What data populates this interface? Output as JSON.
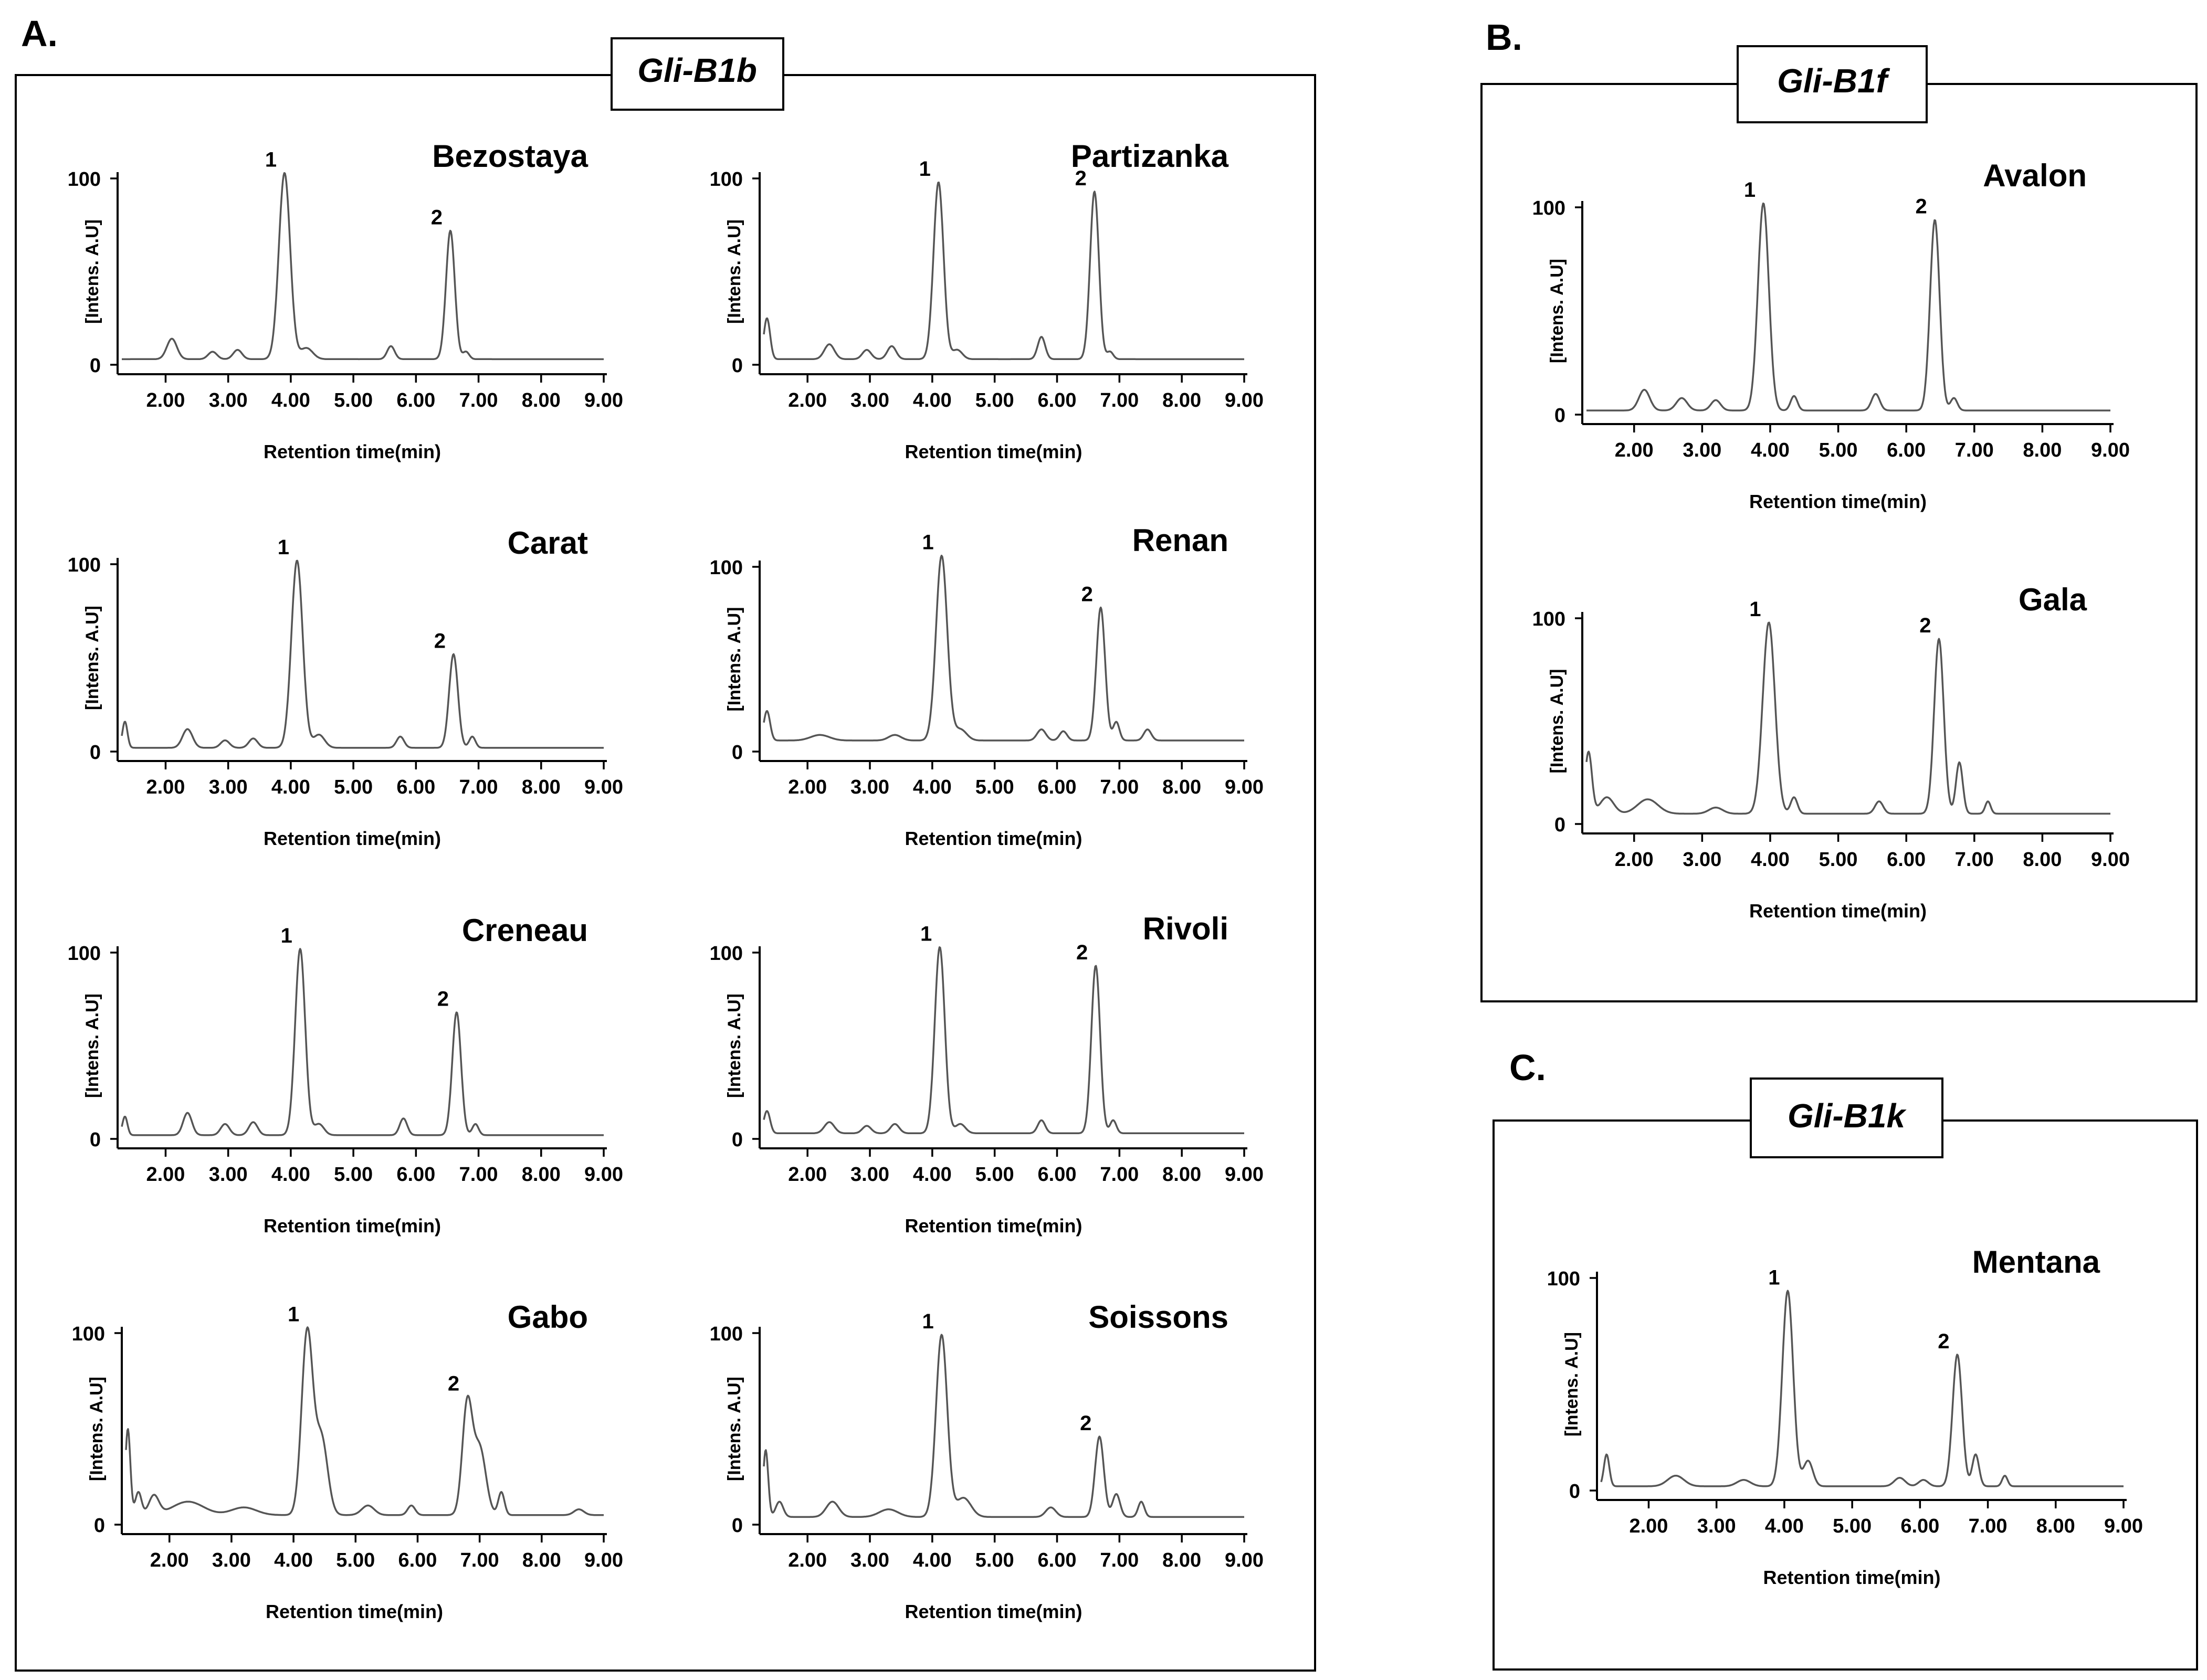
{
  "figure": {
    "panels": [
      {
        "letter": "A.",
        "gene": "Gli-B1b"
      },
      {
        "letter": "B.",
        "gene": "Gli-B1f"
      },
      {
        "letter": "C.",
        "gene": "Gli-B1k"
      }
    ]
  },
  "chart_data": [
    {
      "type": "line",
      "panel": "A",
      "title": "Bezostaya",
      "xlabel": "Retention time(min)",
      "ylabel": "[Intens. A.U]",
      "xlim": [
        1.3,
        9.0
      ],
      "ylim": [
        0,
        100
      ],
      "xticks": [
        "2.00",
        "3.00",
        "4.00",
        "5.00",
        "6.00",
        "7.00",
        "8.00",
        "9.00"
      ],
      "yticks": [
        "0",
        "100"
      ],
      "baseline": 3.0,
      "peaks": [
        {
          "label": "1",
          "x": 3.9,
          "y": 100,
          "w": 0.09
        },
        {
          "label": "2",
          "x": 6.55,
          "y": 69,
          "w": 0.07
        }
      ],
      "minor_peaks": [
        [
          2.1,
          11,
          0.08
        ],
        [
          2.75,
          4,
          0.07
        ],
        [
          3.15,
          5,
          0.07
        ],
        [
          4.25,
          6,
          0.1
        ],
        [
          5.6,
          7,
          0.06
        ],
        [
          6.8,
          4,
          0.05
        ]
      ]
    },
    {
      "type": "line",
      "panel": "A",
      "title": "Partizanka",
      "xlabel": "Retention time(min)",
      "ylabel": "[Intens. A.U]",
      "xlim": [
        1.3,
        9.0
      ],
      "ylim": [
        0,
        100
      ],
      "xticks": [
        "2.00",
        "3.00",
        "4.00",
        "5.00",
        "6.00",
        "7.00",
        "8.00",
        "9.00"
      ],
      "yticks": [
        "0",
        "100"
      ],
      "baseline": 3.0,
      "peaks": [
        {
          "label": "1",
          "x": 4.1,
          "y": 95,
          "w": 0.08
        },
        {
          "label": "2",
          "x": 6.6,
          "y": 90,
          "w": 0.07
        }
      ],
      "minor_peaks": [
        [
          1.35,
          22,
          0.05
        ],
        [
          2.35,
          8,
          0.08
        ],
        [
          2.95,
          5,
          0.07
        ],
        [
          3.35,
          7,
          0.07
        ],
        [
          4.4,
          5,
          0.08
        ],
        [
          5.75,
          12,
          0.06
        ],
        [
          6.85,
          4,
          0.05
        ]
      ]
    },
    {
      "type": "line",
      "panel": "A",
      "title": "Carat",
      "xlabel": "Retention time(min)",
      "ylabel": "[Intens. A.U]",
      "xlim": [
        1.3,
        9.0
      ],
      "ylim": [
        0,
        100
      ],
      "xticks": [
        "2.00",
        "3.00",
        "4.00",
        "5.00",
        "6.00",
        "7.00",
        "8.00",
        "9.00"
      ],
      "yticks": [
        "0",
        "100"
      ],
      "baseline": 2.0,
      "peaks": [
        {
          "label": "1",
          "x": 4.1,
          "y": 100,
          "w": 0.09
        },
        {
          "label": "2",
          "x": 6.6,
          "y": 50,
          "w": 0.07
        }
      ],
      "minor_peaks": [
        [
          1.35,
          14,
          0.04
        ],
        [
          2.35,
          10,
          0.08
        ],
        [
          2.95,
          4,
          0.07
        ],
        [
          3.4,
          5,
          0.07
        ],
        [
          4.45,
          7,
          0.09
        ],
        [
          5.75,
          6,
          0.06
        ],
        [
          6.9,
          6,
          0.05
        ]
      ]
    },
    {
      "type": "line",
      "panel": "A",
      "title": "Renan",
      "xlabel": "Retention time(min)",
      "ylabel": "[Intens. A.U]",
      "xlim": [
        1.3,
        9.0
      ],
      "ylim": [
        0,
        100
      ],
      "xticks": [
        "2.00",
        "3.00",
        "4.00",
        "5.00",
        "6.00",
        "7.00",
        "8.00",
        "9.00"
      ],
      "yticks": [
        "0",
        "100"
      ],
      "baseline": 6.0,
      "peaks": [
        {
          "label": "1",
          "x": 4.15,
          "y": 100,
          "w": 0.09
        },
        {
          "label": "2",
          "x": 6.7,
          "y": 72,
          "w": 0.07
        }
      ],
      "minor_peaks": [
        [
          1.35,
          16,
          0.05
        ],
        [
          2.2,
          3,
          0.15
        ],
        [
          3.4,
          3,
          0.1
        ],
        [
          4.45,
          6,
          0.1
        ],
        [
          5.75,
          6,
          0.07
        ],
        [
          6.1,
          5,
          0.06
        ],
        [
          6.95,
          10,
          0.05
        ],
        [
          7.45,
          6,
          0.06
        ]
      ]
    },
    {
      "type": "line",
      "panel": "A",
      "title": "Creneau",
      "xlabel": "Retention time(min)",
      "ylabel": "[Intens. A.U]",
      "xlim": [
        1.3,
        9.0
      ],
      "ylim": [
        0,
        100
      ],
      "xticks": [
        "2.00",
        "3.00",
        "4.00",
        "5.00",
        "6.00",
        "7.00",
        "8.00",
        "9.00"
      ],
      "yticks": [
        "0",
        "100"
      ],
      "baseline": 2.0,
      "peaks": [
        {
          "label": "1",
          "x": 4.15,
          "y": 100,
          "w": 0.08
        },
        {
          "label": "2",
          "x": 6.65,
          "y": 66,
          "w": 0.07
        }
      ],
      "minor_peaks": [
        [
          1.35,
          10,
          0.04
        ],
        [
          2.35,
          12,
          0.07
        ],
        [
          2.95,
          6,
          0.07
        ],
        [
          3.4,
          7,
          0.07
        ],
        [
          4.45,
          6,
          0.08
        ],
        [
          5.8,
          9,
          0.06
        ],
        [
          6.95,
          6,
          0.05
        ]
      ]
    },
    {
      "type": "line",
      "panel": "A",
      "title": "Rivoli",
      "xlabel": "Retention time(min)",
      "ylabel": "[Intens. A.U]",
      "xlim": [
        1.3,
        9.0
      ],
      "ylim": [
        0,
        100
      ],
      "xticks": [
        "2.00",
        "3.00",
        "4.00",
        "5.00",
        "6.00",
        "7.00",
        "8.00",
        "9.00"
      ],
      "yticks": [
        "0",
        "100"
      ],
      "baseline": 3.0,
      "peaks": [
        {
          "label": "1",
          "x": 4.12,
          "y": 100,
          "w": 0.08
        },
        {
          "label": "2",
          "x": 6.62,
          "y": 90,
          "w": 0.07
        }
      ],
      "minor_peaks": [
        [
          1.35,
          12,
          0.05
        ],
        [
          2.35,
          6,
          0.08
        ],
        [
          2.95,
          4,
          0.07
        ],
        [
          3.4,
          5,
          0.07
        ],
        [
          4.45,
          5,
          0.08
        ],
        [
          5.75,
          7,
          0.06
        ],
        [
          6.9,
          7,
          0.05
        ]
      ]
    },
    {
      "type": "line",
      "panel": "A",
      "title": "Gabo",
      "xlabel": "Retention time(min)",
      "ylabel": "[Intens. A.U]",
      "xlim": [
        1.3,
        9.0
      ],
      "ylim": [
        0,
        100
      ],
      "xticks": [
        "2.00",
        "3.00",
        "4.00",
        "5.00",
        "6.00",
        "7.00",
        "8.00",
        "9.00"
      ],
      "yticks": [
        "0",
        "100"
      ],
      "baseline": 5.0,
      "peaks": [
        {
          "label": "1",
          "x": 4.22,
          "y": 95,
          "w": 0.09
        },
        {
          "label": "2",
          "x": 6.8,
          "y": 57,
          "w": 0.08
        }
      ],
      "minor_peaks": [
        [
          1.33,
          45,
          0.04
        ],
        [
          1.5,
          12,
          0.05
        ],
        [
          1.75,
          10,
          0.08
        ],
        [
          2.3,
          7,
          0.25
        ],
        [
          3.2,
          4,
          0.2
        ],
        [
          4.45,
          40,
          0.1
        ],
        [
          5.2,
          5,
          0.1
        ],
        [
          5.9,
          5,
          0.06
        ],
        [
          7.0,
          35,
          0.1
        ],
        [
          7.35,
          12,
          0.05
        ],
        [
          8.6,
          3,
          0.08
        ]
      ]
    },
    {
      "type": "line",
      "panel": "A",
      "title": "Soissons",
      "xlabel": "Retention time(min)",
      "ylabel": "[Intens. A.U]",
      "xlim": [
        1.3,
        9.0
      ],
      "ylim": [
        0,
        100
      ],
      "xticks": [
        "2.00",
        "3.00",
        "4.00",
        "5.00",
        "6.00",
        "7.00",
        "8.00",
        "9.00"
      ],
      "yticks": [
        "0",
        "100"
      ],
      "baseline": 4.0,
      "peaks": [
        {
          "label": "1",
          "x": 4.15,
          "y": 95,
          "w": 0.09
        },
        {
          "label": "2",
          "x": 6.68,
          "y": 42,
          "w": 0.07
        }
      ],
      "minor_peaks": [
        [
          1.33,
          35,
          0.04
        ],
        [
          1.55,
          8,
          0.06
        ],
        [
          2.4,
          8,
          0.1
        ],
        [
          3.3,
          4,
          0.15
        ],
        [
          4.5,
          10,
          0.12
        ],
        [
          5.9,
          5,
          0.08
        ],
        [
          6.95,
          12,
          0.06
        ],
        [
          7.35,
          8,
          0.05
        ]
      ]
    },
    {
      "type": "line",
      "panel": "B",
      "title": "Avalon",
      "xlabel": "Retention time(min)",
      "ylabel": "[Intens. A.U]",
      "xlim": [
        1.3,
        9.0
      ],
      "ylim": [
        0,
        100
      ],
      "xticks": [
        "2.00",
        "3.00",
        "4.00",
        "5.00",
        "6.00",
        "7.00",
        "8.00",
        "9.00"
      ],
      "yticks": [
        "0",
        "100"
      ],
      "baseline": 2.0,
      "peaks": [
        {
          "label": "1",
          "x": 3.9,
          "y": 100,
          "w": 0.08
        },
        {
          "label": "2",
          "x": 6.42,
          "y": 92,
          "w": 0.07
        }
      ],
      "minor_peaks": [
        [
          2.15,
          10,
          0.08
        ],
        [
          2.7,
          6,
          0.08
        ],
        [
          3.2,
          5,
          0.07
        ],
        [
          4.35,
          7,
          0.05
        ],
        [
          5.55,
          8,
          0.06
        ],
        [
          6.7,
          6,
          0.05
        ]
      ]
    },
    {
      "type": "line",
      "panel": "B",
      "title": "Gala",
      "xlabel": "Retention time(min)",
      "ylabel": "[Intens. A.U]",
      "xlim": [
        1.3,
        9.0
      ],
      "ylim": [
        0,
        100
      ],
      "xticks": [
        "2.00",
        "3.00",
        "4.00",
        "5.00",
        "6.00",
        "7.00",
        "8.00",
        "9.00"
      ],
      "yticks": [
        "0",
        "100"
      ],
      "baseline": 5.0,
      "peaks": [
        {
          "label": "1",
          "x": 3.98,
          "y": 93,
          "w": 0.09
        },
        {
          "label": "2",
          "x": 6.48,
          "y": 85,
          "w": 0.07
        }
      ],
      "minor_peaks": [
        [
          1.33,
          30,
          0.05
        ],
        [
          1.6,
          8,
          0.1
        ],
        [
          2.2,
          7,
          0.15
        ],
        [
          3.2,
          3,
          0.1
        ],
        [
          4.35,
          8,
          0.05
        ],
        [
          5.6,
          6,
          0.06
        ],
        [
          6.78,
          25,
          0.05
        ],
        [
          7.2,
          6,
          0.04
        ]
      ]
    },
    {
      "type": "line",
      "panel": "C",
      "title": "Mentana",
      "xlabel": "Retention time(min)",
      "ylabel": "[Intens. A.U]",
      "xlim": [
        1.3,
        9.0
      ],
      "ylim": [
        0,
        100
      ],
      "xticks": [
        "2.00",
        "3.00",
        "4.00",
        "5.00",
        "6.00",
        "7.00",
        "8.00",
        "9.00"
      ],
      "yticks": [
        "0",
        "100"
      ],
      "baseline": 2.0,
      "peaks": [
        {
          "label": "1",
          "x": 4.05,
          "y": 92,
          "w": 0.08
        },
        {
          "label": "2",
          "x": 6.55,
          "y": 62,
          "w": 0.07
        }
      ],
      "minor_peaks": [
        [
          1.38,
          15,
          0.04
        ],
        [
          2.4,
          5,
          0.12
        ],
        [
          3.4,
          3,
          0.1
        ],
        [
          4.35,
          12,
          0.07
        ],
        [
          5.7,
          4,
          0.08
        ],
        [
          6.05,
          3,
          0.07
        ],
        [
          6.82,
          15,
          0.05
        ],
        [
          7.25,
          5,
          0.04
        ]
      ]
    }
  ]
}
